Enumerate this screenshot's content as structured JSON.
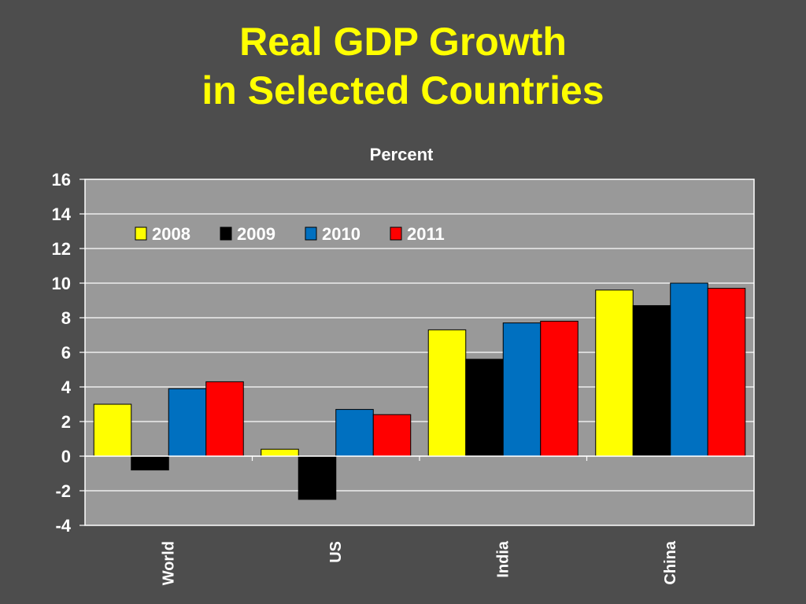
{
  "slide": {
    "title_line1": "Real GDP Growth",
    "title_line2": "in Selected Countries"
  },
  "chart_data": {
    "type": "bar",
    "title": "",
    "ylabel": "Percent",
    "xlabel": "",
    "categories": [
      "World",
      "US",
      "India",
      "China"
    ],
    "series": [
      {
        "name": "2008",
        "color": "#ffff00",
        "values": [
          3.0,
          0.4,
          7.3,
          9.6
        ]
      },
      {
        "name": "2009",
        "color": "#000000",
        "values": [
          -0.8,
          -2.5,
          5.6,
          8.7
        ]
      },
      {
        "name": "2010",
        "color": "#0070c0",
        "values": [
          3.9,
          2.7,
          7.7,
          10.0
        ]
      },
      {
        "name": "2011",
        "color": "#ff0000",
        "values": [
          4.3,
          2.4,
          7.8,
          9.7
        ]
      }
    ],
    "ylim": [
      -4,
      16
    ],
    "yticks": [
      "-4",
      "-2",
      "0",
      "2",
      "4",
      "6",
      "8",
      "10",
      "12",
      "14",
      "16"
    ],
    "grid": true,
    "legend_position": "top-left"
  }
}
